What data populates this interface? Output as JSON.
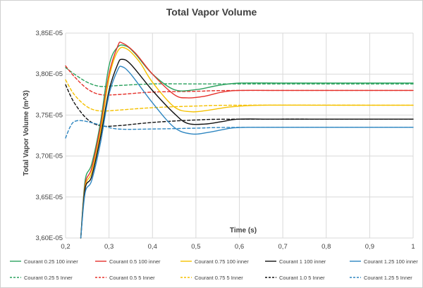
{
  "chart_data": {
    "type": "line",
    "title": "Total Vapor Volume",
    "xlabel": "Time (s)",
    "ylabel": "Total Vapor Volume (m^3)",
    "xlim": [
      0.2,
      1.0
    ],
    "ylim": [
      3.6e-05,
      3.85e-05
    ],
    "x_ticks": [
      0.2,
      0.3,
      0.4,
      0.5,
      0.6,
      0.7,
      0.8,
      0.9,
      1.0
    ],
    "x_tick_labels": [
      "0,2",
      "0,3",
      "0,4",
      "0,5",
      "0,6",
      "0,7",
      "0,8",
      "0,9",
      "1"
    ],
    "y_ticks": [
      3.6e-05,
      3.65e-05,
      3.7e-05,
      3.75e-05,
      3.8e-05,
      3.85e-05
    ],
    "y_tick_labels": [
      "3,60E-05",
      "3,65E-05",
      "3,70E-05",
      "3,75E-05",
      "3,80E-05",
      "3,85E-05"
    ],
    "legend_position": "bottom",
    "series": [
      {
        "name": "Courant 0.25 100 inner",
        "color": "#2ca25f",
        "dash": "solid",
        "points": [
          [
            0.235,
            3.6
          ],
          [
            0.245,
            3.67
          ],
          [
            0.26,
            3.69
          ],
          [
            0.28,
            3.74
          ],
          [
            0.3,
            3.81
          ],
          [
            0.32,
            3.833
          ],
          [
            0.34,
            3.834
          ],
          [
            0.36,
            3.825
          ],
          [
            0.4,
            3.8
          ],
          [
            0.45,
            3.781
          ],
          [
            0.5,
            3.781
          ],
          [
            0.55,
            3.786
          ],
          [
            0.6,
            3.789
          ],
          [
            0.7,
            3.789
          ],
          [
            0.8,
            3.789
          ],
          [
            1.0,
            3.789
          ]
        ]
      },
      {
        "name": "Courant 0.5 100 inner",
        "color": "#e5302a",
        "dash": "solid",
        "points": [
          [
            0.235,
            3.6
          ],
          [
            0.245,
            3.665
          ],
          [
            0.26,
            3.685
          ],
          [
            0.28,
            3.735
          ],
          [
            0.3,
            3.8
          ],
          [
            0.32,
            3.834
          ],
          [
            0.33,
            3.838
          ],
          [
            0.36,
            3.826
          ],
          [
            0.4,
            3.8
          ],
          [
            0.45,
            3.775
          ],
          [
            0.48,
            3.771
          ],
          [
            0.52,
            3.773
          ],
          [
            0.56,
            3.778
          ],
          [
            0.6,
            3.78
          ],
          [
            0.7,
            3.78
          ],
          [
            1.0,
            3.78
          ]
        ]
      },
      {
        "name": "Courant 0.75 100 inner",
        "color": "#f5c100",
        "dash": "solid",
        "points": [
          [
            0.235,
            3.6
          ],
          [
            0.245,
            3.662
          ],
          [
            0.26,
            3.68
          ],
          [
            0.28,
            3.728
          ],
          [
            0.3,
            3.795
          ],
          [
            0.32,
            3.828
          ],
          [
            0.34,
            3.831
          ],
          [
            0.37,
            3.815
          ],
          [
            0.4,
            3.79
          ],
          [
            0.45,
            3.76
          ],
          [
            0.49,
            3.754
          ],
          [
            0.53,
            3.756
          ],
          [
            0.58,
            3.76
          ],
          [
            0.65,
            3.762
          ],
          [
            0.8,
            3.762
          ],
          [
            1.0,
            3.762
          ]
        ]
      },
      {
        "name": "Courant 1 100 inner",
        "color": "#111111",
        "dash": "solid",
        "points": [
          [
            0.235,
            3.6
          ],
          [
            0.245,
            3.66
          ],
          [
            0.26,
            3.675
          ],
          [
            0.28,
            3.722
          ],
          [
            0.3,
            3.78
          ],
          [
            0.32,
            3.812
          ],
          [
            0.33,
            3.818
          ],
          [
            0.35,
            3.812
          ],
          [
            0.4,
            3.78
          ],
          [
            0.45,
            3.752
          ],
          [
            0.48,
            3.74
          ],
          [
            0.52,
            3.739
          ],
          [
            0.56,
            3.742
          ],
          [
            0.6,
            3.745
          ],
          [
            0.7,
            3.745
          ],
          [
            1.0,
            3.745
          ]
        ]
      },
      {
        "name": "Courant 1.25 100 inner",
        "color": "#2e86c1",
        "dash": "solid",
        "points": [
          [
            0.235,
            3.6
          ],
          [
            0.245,
            3.655
          ],
          [
            0.26,
            3.67
          ],
          [
            0.28,
            3.715
          ],
          [
            0.3,
            3.775
          ],
          [
            0.32,
            3.805
          ],
          [
            0.33,
            3.809
          ],
          [
            0.35,
            3.8
          ],
          [
            0.4,
            3.765
          ],
          [
            0.45,
            3.735
          ],
          [
            0.49,
            3.727
          ],
          [
            0.53,
            3.729
          ],
          [
            0.58,
            3.734
          ],
          [
            0.62,
            3.735
          ],
          [
            0.7,
            3.735
          ],
          [
            1.0,
            3.735
          ]
        ]
      },
      {
        "name": "Courant 0.25 5 Inner",
        "color": "#2ca25f",
        "dash": "dashed",
        "points": [
          [
            0.2,
            3.808
          ],
          [
            0.22,
            3.8
          ],
          [
            0.25,
            3.79
          ],
          [
            0.28,
            3.785
          ],
          [
            0.32,
            3.786
          ],
          [
            0.4,
            3.788
          ],
          [
            0.5,
            3.788
          ],
          [
            0.6,
            3.788
          ],
          [
            1.0,
            3.788
          ]
        ]
      },
      {
        "name": "Courant 0.5 5 Inner",
        "color": "#e5302a",
        "dash": "dashed",
        "points": [
          [
            0.2,
            3.81
          ],
          [
            0.22,
            3.797
          ],
          [
            0.25,
            3.782
          ],
          [
            0.28,
            3.775
          ],
          [
            0.32,
            3.775
          ],
          [
            0.4,
            3.778
          ],
          [
            0.5,
            3.779
          ],
          [
            0.6,
            3.78
          ],
          [
            1.0,
            3.78
          ]
        ]
      },
      {
        "name": "Courant 0.75 5 Inner",
        "color": "#f5c100",
        "dash": "dashed",
        "points": [
          [
            0.2,
            3.793
          ],
          [
            0.22,
            3.775
          ],
          [
            0.25,
            3.76
          ],
          [
            0.28,
            3.755
          ],
          [
            0.32,
            3.756
          ],
          [
            0.4,
            3.759
          ],
          [
            0.5,
            3.761
          ],
          [
            0.6,
            3.762
          ],
          [
            1.0,
            3.762
          ]
        ]
      },
      {
        "name": "Courant 1.0 5 Inner",
        "color": "#111111",
        "dash": "dashed",
        "points": [
          [
            0.2,
            3.787
          ],
          [
            0.22,
            3.765
          ],
          [
            0.25,
            3.745
          ],
          [
            0.28,
            3.737
          ],
          [
            0.32,
            3.737
          ],
          [
            0.4,
            3.741
          ],
          [
            0.5,
            3.744
          ],
          [
            0.6,
            3.745
          ],
          [
            1.0,
            3.745
          ]
        ]
      },
      {
        "name": "Courant 1.25 5 Inner",
        "color": "#2e86c1",
        "dash": "dashed",
        "points": [
          [
            0.2,
            3.722
          ],
          [
            0.21,
            3.735
          ],
          [
            0.22,
            3.742
          ],
          [
            0.24,
            3.743
          ],
          [
            0.28,
            3.738
          ],
          [
            0.32,
            3.733
          ],
          [
            0.4,
            3.733
          ],
          [
            0.5,
            3.734
          ],
          [
            0.6,
            3.735
          ],
          [
            1.0,
            3.735
          ]
        ]
      }
    ]
  }
}
